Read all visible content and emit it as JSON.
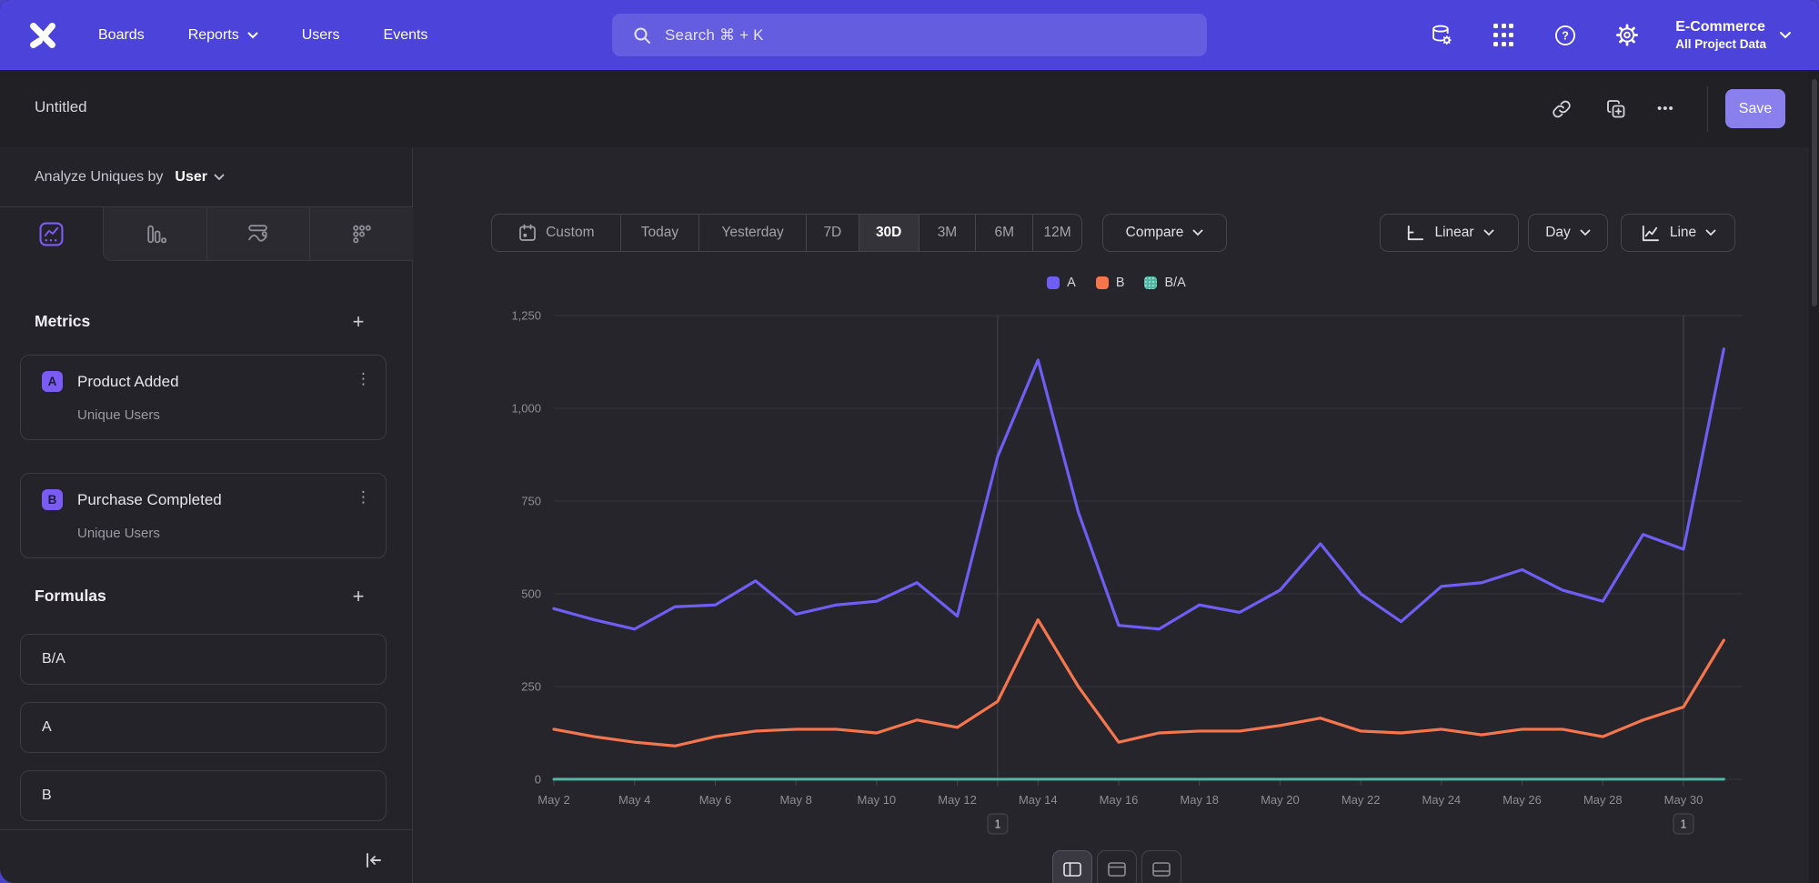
{
  "nav": {
    "items": [
      "Boards",
      "Reports",
      "Users",
      "Events"
    ],
    "search_placeholder": "Search  ⌘ + K",
    "project": {
      "name": "E-Commerce",
      "scope": "All Project Data"
    }
  },
  "header": {
    "title": "Untitled",
    "save_label": "Save",
    "more_label": "•••"
  },
  "sidebar": {
    "analyze_label": "Analyze Uniques by",
    "analyze_value": "User",
    "metrics": {
      "heading": "Metrics",
      "add_label": "+",
      "items": [
        {
          "badge": "A",
          "name": "Product Added",
          "measure": "Unique Users",
          "menu": "⋮"
        },
        {
          "badge": "B",
          "name": "Purchase Completed",
          "measure": "Unique Users",
          "menu": "⋮"
        }
      ]
    },
    "formulas": {
      "heading": "Formulas",
      "add_label": "+",
      "items": [
        "B/A",
        "A",
        "B"
      ]
    }
  },
  "controls": {
    "ranges": [
      "Custom",
      "Today",
      "Yesterday",
      "7D",
      "30D",
      "3M",
      "6M",
      "12M"
    ],
    "active_range": "30D",
    "compare_label": "Compare",
    "scale_label": "Linear",
    "interval_label": "Day",
    "chart_type_label": "Line"
  },
  "chart_data": {
    "type": "line",
    "title": "",
    "xlabel": "",
    "ylabel": "",
    "ylim": [
      0,
      1250
    ],
    "yticks": [
      0,
      250,
      500,
      750,
      1000,
      1250
    ],
    "grid": "horizontal",
    "legend_position": "top-center",
    "dates": [
      "May 2",
      "May 3",
      "May 4",
      "May 5",
      "May 6",
      "May 7",
      "May 8",
      "May 9",
      "May 10",
      "May 11",
      "May 12",
      "May 13",
      "May 14",
      "May 15",
      "May 16",
      "May 17",
      "May 18",
      "May 19",
      "May 20",
      "May 21",
      "May 22",
      "May 23",
      "May 24",
      "May 25",
      "May 26",
      "May 27",
      "May 28",
      "May 29",
      "May 30",
      "May 31"
    ],
    "xtick_labels": [
      "May 2",
      "May 4",
      "May 6",
      "May 8",
      "May 10",
      "May 12",
      "May 14",
      "May 16",
      "May 18",
      "May 20",
      "May 22",
      "May 24",
      "May 26",
      "May 28",
      "May 30"
    ],
    "series": [
      {
        "name": "A",
        "metric": "Product Added · Unique Users",
        "color": "#6f5ef3",
        "values": [
          460,
          430,
          405,
          465,
          470,
          535,
          445,
          470,
          480,
          530,
          440,
          870,
          1130,
          720,
          415,
          405,
          470,
          450,
          510,
          635,
          500,
          425,
          520,
          530,
          565,
          510,
          480,
          660,
          620,
          1160
        ]
      },
      {
        "name": "B",
        "metric": "Purchase Completed · Unique Users",
        "color": "#f5764e",
        "values": [
          135,
          115,
          100,
          90,
          115,
          130,
          135,
          135,
          125,
          160,
          140,
          210,
          430,
          250,
          100,
          125,
          130,
          130,
          145,
          165,
          130,
          125,
          135,
          120,
          135,
          135,
          115,
          160,
          195,
          375
        ]
      },
      {
        "name": "B/A",
        "metric": "Formula B/A",
        "color": "#4fb8a5",
        "values": [
          0.29,
          0.27,
          0.25,
          0.19,
          0.24,
          0.24,
          0.3,
          0.29,
          0.26,
          0.3,
          0.32,
          0.24,
          0.38,
          0.35,
          0.24,
          0.31,
          0.28,
          0.29,
          0.28,
          0.26,
          0.26,
          0.29,
          0.26,
          0.23,
          0.24,
          0.26,
          0.24,
          0.24,
          0.31,
          0.32
        ]
      }
    ],
    "annotations": [
      {
        "index": 11,
        "date": "May 13",
        "label": "1"
      },
      {
        "index": 28,
        "date": "May 30",
        "label": "1"
      }
    ]
  }
}
